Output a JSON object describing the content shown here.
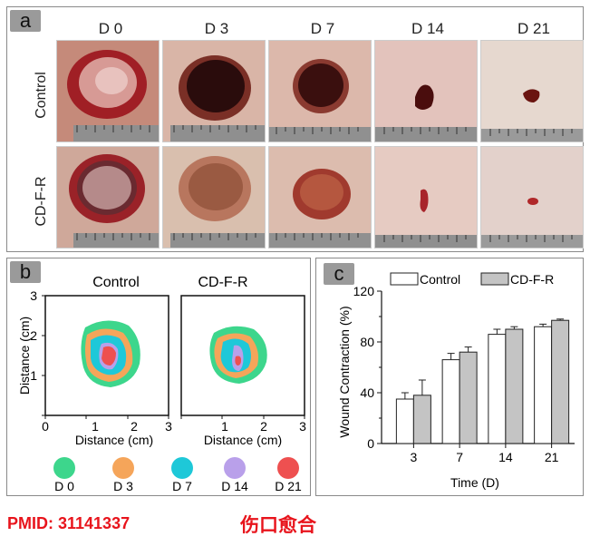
{
  "panel_a": {
    "tag": "a",
    "days": [
      "D 0",
      "D 3",
      "D 7",
      "D 14",
      "D 21"
    ],
    "groups": [
      "Control",
      "CD-F-R"
    ]
  },
  "panel_b": {
    "tag": "b",
    "titles": [
      "Control",
      "CD-F-R"
    ],
    "xlabel": "Distance (cm)",
    "ylabel": "Distance (cm)",
    "ticks": [
      "0",
      "1",
      "2",
      "3"
    ],
    "legend": [
      {
        "label": "D 0",
        "color": "#3dd68c"
      },
      {
        "label": "D 3",
        "color": "#f5a55a"
      },
      {
        "label": "D 7",
        "color": "#1ec8d8"
      },
      {
        "label": "D 14",
        "color": "#b9a0ea"
      },
      {
        "label": "D 21",
        "color": "#ee5050"
      }
    ]
  },
  "chart_data": {
    "type": "bar",
    "tag": "c",
    "categories": [
      "3",
      "7",
      "14",
      "21"
    ],
    "series": [
      {
        "name": "Control",
        "values": [
          35,
          66,
          86,
          92
        ],
        "errors": [
          5,
          5,
          4,
          2
        ],
        "color": "#ffffff"
      },
      {
        "name": "CD-F-R",
        "values": [
          38,
          72,
          90,
          97
        ],
        "errors": [
          12,
          4,
          2,
          1
        ],
        "color": "#c4c4c4"
      }
    ],
    "xlabel": "Time (D)",
    "ylabel": "Wound Contraction (%)",
    "ylim": [
      0,
      120
    ],
    "yticks": [
      "0",
      "40",
      "80",
      "120"
    ],
    "legend_placement": "top"
  },
  "footer": {
    "pmid": "PMID: 31141337",
    "caption": "伤口愈合"
  }
}
